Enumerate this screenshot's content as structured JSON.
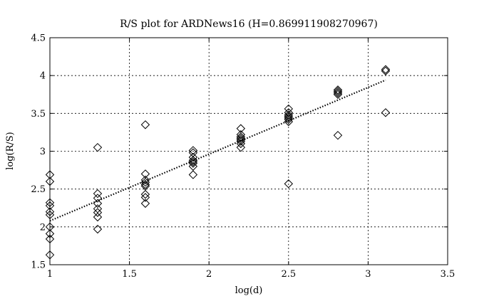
{
  "chart_data": {
    "type": "scatter",
    "title": "R/S plot for ARDNews16 (H=0.869911908270967)",
    "xlabel": "log(d)",
    "ylabel": "log(R/S)",
    "xlim": [
      1,
      3.5
    ],
    "ylim": [
      1.5,
      4.5
    ],
    "xticks": [
      1,
      1.5,
      2,
      2.5,
      3,
      3.5
    ],
    "yticks": [
      1.5,
      2,
      2.5,
      3,
      3.5,
      4,
      4.5
    ],
    "xtick_labels": [
      "1",
      "1.5",
      "2",
      "2.5",
      "3",
      "3.5"
    ],
    "ytick_labels": [
      "1.5",
      "2",
      "2.5",
      "3",
      "3.5",
      "4",
      "4.5"
    ],
    "grid": true,
    "marker": "diamond",
    "points": [
      {
        "x": 1.0,
        "y": 2.69
      },
      {
        "x": 1.0,
        "y": 2.6
      },
      {
        "x": 1.0,
        "y": 2.32
      },
      {
        "x": 1.0,
        "y": 2.28
      },
      {
        "x": 1.0,
        "y": 2.2
      },
      {
        "x": 1.0,
        "y": 2.16
      },
      {
        "x": 1.0,
        "y": 2.0
      },
      {
        "x": 1.0,
        "y": 1.91
      },
      {
        "x": 1.0,
        "y": 1.84
      },
      {
        "x": 1.0,
        "y": 1.63
      },
      {
        "x": 1.3,
        "y": 3.05
      },
      {
        "x": 1.3,
        "y": 2.44
      },
      {
        "x": 1.3,
        "y": 2.38
      },
      {
        "x": 1.3,
        "y": 2.31
      },
      {
        "x": 1.3,
        "y": 2.24
      },
      {
        "x": 1.3,
        "y": 2.19
      },
      {
        "x": 1.3,
        "y": 2.13
      },
      {
        "x": 1.3,
        "y": 1.97
      },
      {
        "x": 1.6,
        "y": 3.35
      },
      {
        "x": 1.6,
        "y": 2.7
      },
      {
        "x": 1.6,
        "y": 2.62
      },
      {
        "x": 1.6,
        "y": 2.59
      },
      {
        "x": 1.6,
        "y": 2.56
      },
      {
        "x": 1.6,
        "y": 2.54
      },
      {
        "x": 1.6,
        "y": 2.43
      },
      {
        "x": 1.6,
        "y": 2.39
      },
      {
        "x": 1.6,
        "y": 2.31
      },
      {
        "x": 1.9,
        "y": 3.01
      },
      {
        "x": 1.9,
        "y": 2.98
      },
      {
        "x": 1.9,
        "y": 2.92
      },
      {
        "x": 1.9,
        "y": 2.88
      },
      {
        "x": 1.9,
        "y": 2.86
      },
      {
        "x": 1.9,
        "y": 2.84
      },
      {
        "x": 1.9,
        "y": 2.8
      },
      {
        "x": 1.9,
        "y": 2.69
      },
      {
        "x": 2.2,
        "y": 3.3
      },
      {
        "x": 2.2,
        "y": 3.22
      },
      {
        "x": 2.2,
        "y": 3.19
      },
      {
        "x": 2.2,
        "y": 3.17
      },
      {
        "x": 2.2,
        "y": 3.15
      },
      {
        "x": 2.2,
        "y": 3.13
      },
      {
        "x": 2.2,
        "y": 3.1
      },
      {
        "x": 2.2,
        "y": 3.05
      },
      {
        "x": 2.5,
        "y": 3.56
      },
      {
        "x": 2.5,
        "y": 3.51
      },
      {
        "x": 2.5,
        "y": 3.48
      },
      {
        "x": 2.5,
        "y": 3.46
      },
      {
        "x": 2.5,
        "y": 3.44
      },
      {
        "x": 2.5,
        "y": 3.42
      },
      {
        "x": 2.5,
        "y": 3.39
      },
      {
        "x": 2.5,
        "y": 2.57
      },
      {
        "x": 2.81,
        "y": 3.81
      },
      {
        "x": 2.81,
        "y": 3.79
      },
      {
        "x": 2.81,
        "y": 3.77
      },
      {
        "x": 2.81,
        "y": 3.75
      },
      {
        "x": 2.81,
        "y": 3.21
      },
      {
        "x": 3.11,
        "y": 4.08
      },
      {
        "x": 3.11,
        "y": 4.06
      },
      {
        "x": 3.11,
        "y": 3.51
      }
    ],
    "fit_line": {
      "x": [
        1.0,
        3.11
      ],
      "y": [
        2.08,
        3.94
      ],
      "style": "dotted"
    }
  }
}
